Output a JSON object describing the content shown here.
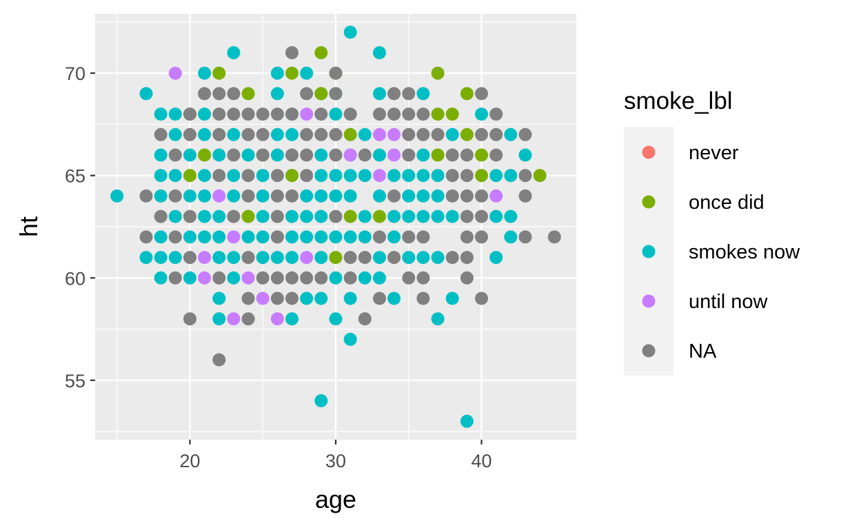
{
  "chart_data": {
    "type": "scatter",
    "xlabel": "age",
    "ylabel": "ht",
    "xlim": [
      13.5,
      46.5
    ],
    "ylim": [
      52.1,
      72.9
    ],
    "x_ticks": [
      20,
      30,
      40
    ],
    "y_ticks": [
      55,
      60,
      65,
      70
    ],
    "grid": true,
    "legend": {
      "title": "smoke_lbl",
      "placement": "right",
      "entries": [
        "never",
        "once did",
        "smokes now",
        "until now",
        "NA"
      ]
    },
    "colors": {
      "never": "#F8766D",
      "once did": "#7CAE00",
      "smokes now": "#00BFC4",
      "until now": "#C77CFF",
      "NA": "#808080",
      "panel": "#EBEBEB",
      "grid": "#FFFFFF"
    },
    "series": [
      {
        "name": "smokes now",
        "points": [
          [
            31,
            72
          ],
          [
            23,
            71
          ],
          [
            33,
            71
          ],
          [
            21,
            70
          ],
          [
            26,
            70
          ],
          [
            28,
            70
          ],
          [
            17,
            69
          ],
          [
            26,
            69
          ],
          [
            29,
            69
          ],
          [
            30,
            69
          ],
          [
            33,
            69
          ],
          [
            36,
            69
          ],
          [
            18,
            68
          ],
          [
            19,
            68
          ],
          [
            21,
            68
          ],
          [
            27,
            68
          ],
          [
            30,
            68
          ],
          [
            40,
            68
          ],
          [
            19,
            67
          ],
          [
            21,
            67
          ],
          [
            23,
            67
          ],
          [
            26,
            67
          ],
          [
            27,
            67
          ],
          [
            32,
            67
          ],
          [
            38,
            67
          ],
          [
            42,
            67
          ],
          [
            18,
            66
          ],
          [
            20,
            66
          ],
          [
            22,
            66
          ],
          [
            24,
            66
          ],
          [
            26,
            66
          ],
          [
            29,
            66
          ],
          [
            31,
            66
          ],
          [
            33,
            66
          ],
          [
            36,
            66
          ],
          [
            43,
            66
          ],
          [
            18,
            65
          ],
          [
            19,
            65
          ],
          [
            21,
            65
          ],
          [
            23,
            65
          ],
          [
            25,
            65
          ],
          [
            27,
            65
          ],
          [
            29,
            65
          ],
          [
            30,
            65
          ],
          [
            31,
            65
          ],
          [
            32,
            65
          ],
          [
            34,
            65
          ],
          [
            35,
            65
          ],
          [
            36,
            65
          ],
          [
            37,
            65
          ],
          [
            41,
            65
          ],
          [
            42,
            65
          ],
          [
            15,
            64
          ],
          [
            18,
            64
          ],
          [
            20,
            64
          ],
          [
            21,
            64
          ],
          [
            23,
            64
          ],
          [
            25,
            64
          ],
          [
            28,
            64
          ],
          [
            29,
            64
          ],
          [
            30,
            64
          ],
          [
            31,
            64
          ],
          [
            33,
            64
          ],
          [
            35,
            64
          ],
          [
            36,
            64
          ],
          [
            37,
            64
          ],
          [
            19,
            63
          ],
          [
            21,
            63
          ],
          [
            22,
            63
          ],
          [
            25,
            63
          ],
          [
            27,
            63
          ],
          [
            28,
            63
          ],
          [
            29,
            63
          ],
          [
            32,
            63
          ],
          [
            34,
            63
          ],
          [
            35,
            63
          ],
          [
            36,
            63
          ],
          [
            37,
            63
          ],
          [
            38,
            63
          ],
          [
            41,
            63
          ],
          [
            42,
            63
          ],
          [
            18,
            62
          ],
          [
            20,
            62
          ],
          [
            21,
            62
          ],
          [
            22,
            62
          ],
          [
            24,
            62
          ],
          [
            25,
            62
          ],
          [
            27,
            62
          ],
          [
            28,
            62
          ],
          [
            29,
            62
          ],
          [
            30,
            62
          ],
          [
            31,
            62
          ],
          [
            32,
            62
          ],
          [
            34,
            62
          ],
          [
            42,
            62
          ],
          [
            17,
            61
          ],
          [
            18,
            61
          ],
          [
            19,
            61
          ],
          [
            22,
            61
          ],
          [
            23,
            61
          ],
          [
            25,
            61
          ],
          [
            26,
            61
          ],
          [
            27,
            61
          ],
          [
            29,
            61
          ],
          [
            33,
            61
          ],
          [
            35,
            61
          ],
          [
            36,
            61
          ],
          [
            37,
            61
          ],
          [
            41,
            61
          ],
          [
            18,
            60
          ],
          [
            20,
            60
          ],
          [
            23,
            60
          ],
          [
            30,
            60
          ],
          [
            32,
            60
          ],
          [
            33,
            60
          ],
          [
            22,
            59
          ],
          [
            28,
            59
          ],
          [
            29,
            59
          ],
          [
            31,
            59
          ],
          [
            34,
            59
          ],
          [
            38,
            59
          ],
          [
            22,
            58
          ],
          [
            27,
            58
          ],
          [
            30,
            58
          ],
          [
            37,
            58
          ],
          [
            31,
            57
          ],
          [
            29,
            54
          ],
          [
            39,
            53
          ]
        ]
      },
      {
        "name": "once did",
        "points": [
          [
            29,
            71
          ],
          [
            22,
            70
          ],
          [
            27,
            70
          ],
          [
            30,
            70
          ],
          [
            37,
            70
          ],
          [
            24,
            69
          ],
          [
            29,
            69
          ],
          [
            39,
            69
          ],
          [
            20,
            68
          ],
          [
            37,
            68
          ],
          [
            38,
            68
          ],
          [
            31,
            67
          ],
          [
            39,
            67
          ],
          [
            21,
            66
          ],
          [
            25,
            66
          ],
          [
            37,
            66
          ],
          [
            40,
            66
          ],
          [
            20,
            65
          ],
          [
            27,
            65
          ],
          [
            40,
            65
          ],
          [
            44,
            65
          ],
          [
            24,
            63
          ],
          [
            31,
            63
          ],
          [
            33,
            63
          ],
          [
            30,
            61
          ]
        ]
      },
      {
        "name": "until now",
        "points": [
          [
            19,
            70
          ],
          [
            28,
            68
          ],
          [
            33,
            67
          ],
          [
            34,
            67
          ],
          [
            31,
            66
          ],
          [
            34,
            66
          ],
          [
            33,
            65
          ],
          [
            22,
            64
          ],
          [
            41,
            64
          ],
          [
            23,
            62
          ],
          [
            26,
            62
          ],
          [
            21,
            61
          ],
          [
            28,
            61
          ],
          [
            21,
            60
          ],
          [
            24,
            60
          ],
          [
            25,
            59
          ],
          [
            23,
            58
          ],
          [
            26,
            58
          ]
        ]
      },
      {
        "name": "NA",
        "points": [
          [
            27,
            71
          ],
          [
            30,
            70
          ],
          [
            21,
            69
          ],
          [
            22,
            69
          ],
          [
            23,
            69
          ],
          [
            28,
            69
          ],
          [
            30,
            69
          ],
          [
            34,
            69
          ],
          [
            35,
            69
          ],
          [
            40,
            69
          ],
          [
            20,
            68
          ],
          [
            22,
            68
          ],
          [
            23,
            68
          ],
          [
            24,
            68
          ],
          [
            25,
            68
          ],
          [
            26,
            68
          ],
          [
            27,
            68
          ],
          [
            29,
            68
          ],
          [
            31,
            68
          ],
          [
            33,
            68
          ],
          [
            34,
            68
          ],
          [
            35,
            68
          ],
          [
            36,
            68
          ],
          [
            41,
            68
          ],
          [
            18,
            67
          ],
          [
            20,
            67
          ],
          [
            22,
            67
          ],
          [
            24,
            67
          ],
          [
            25,
            67
          ],
          [
            28,
            67
          ],
          [
            29,
            67
          ],
          [
            30,
            67
          ],
          [
            35,
            67
          ],
          [
            36,
            67
          ],
          [
            37,
            67
          ],
          [
            40,
            67
          ],
          [
            41,
            67
          ],
          [
            43,
            67
          ],
          [
            19,
            66
          ],
          [
            23,
            66
          ],
          [
            25,
            66
          ],
          [
            27,
            66
          ],
          [
            28,
            66
          ],
          [
            30,
            66
          ],
          [
            32,
            66
          ],
          [
            35,
            66
          ],
          [
            38,
            66
          ],
          [
            39,
            66
          ],
          [
            41,
            66
          ],
          [
            22,
            65
          ],
          [
            24,
            65
          ],
          [
            26,
            65
          ],
          [
            28,
            65
          ],
          [
            38,
            65
          ],
          [
            39,
            65
          ],
          [
            43,
            65
          ],
          [
            17,
            64
          ],
          [
            19,
            64
          ],
          [
            24,
            64
          ],
          [
            26,
            64
          ],
          [
            27,
            64
          ],
          [
            34,
            64
          ],
          [
            38,
            64
          ],
          [
            39,
            64
          ],
          [
            40,
            64
          ],
          [
            43,
            64
          ],
          [
            18,
            63
          ],
          [
            20,
            63
          ],
          [
            23,
            63
          ],
          [
            26,
            63
          ],
          [
            30,
            63
          ],
          [
            39,
            63
          ],
          [
            40,
            63
          ],
          [
            17,
            62
          ],
          [
            19,
            62
          ],
          [
            26,
            62
          ],
          [
            33,
            62
          ],
          [
            35,
            62
          ],
          [
            36,
            62
          ],
          [
            39,
            62
          ],
          [
            40,
            62
          ],
          [
            43,
            62
          ],
          [
            45,
            62
          ],
          [
            20,
            61
          ],
          [
            24,
            61
          ],
          [
            31,
            61
          ],
          [
            32,
            61
          ],
          [
            34,
            61
          ],
          [
            38,
            61
          ],
          [
            39,
            61
          ],
          [
            19,
            60
          ],
          [
            22,
            60
          ],
          [
            25,
            60
          ],
          [
            26,
            60
          ],
          [
            27,
            60
          ],
          [
            28,
            60
          ],
          [
            29,
            60
          ],
          [
            31,
            60
          ],
          [
            35,
            60
          ],
          [
            36,
            60
          ],
          [
            39,
            60
          ],
          [
            24,
            59
          ],
          [
            26,
            59
          ],
          [
            27,
            59
          ],
          [
            33,
            59
          ],
          [
            36,
            59
          ],
          [
            40,
            59
          ],
          [
            20,
            58
          ],
          [
            24,
            58
          ],
          [
            32,
            58
          ],
          [
            22,
            56
          ]
        ]
      }
    ]
  }
}
